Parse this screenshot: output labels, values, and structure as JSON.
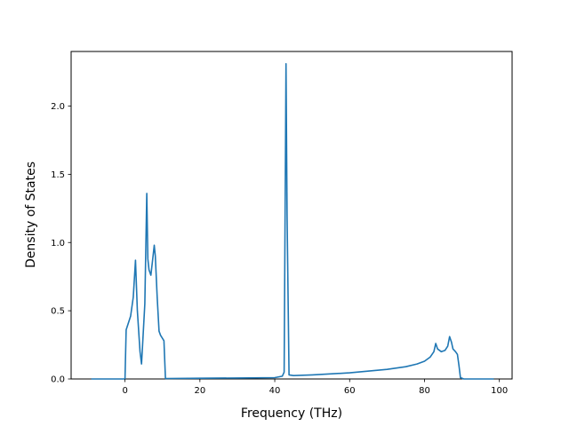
{
  "chart_data": {
    "type": "line",
    "title": "",
    "xlabel": "Frequency (THz)",
    "ylabel": "Density of States",
    "xlim": [
      -14.4,
      103.4
    ],
    "ylim": [
      0,
      2.4
    ],
    "x_ticks": [
      0,
      20,
      40,
      60,
      80,
      100
    ],
    "x_tick_labels": [
      "0",
      "20",
      "40",
      "60",
      "80",
      "100"
    ],
    "y_ticks": [
      0.0,
      0.5,
      1.0,
      1.5,
      2.0
    ],
    "y_tick_labels": [
      "0.0",
      "0.5",
      "1.0",
      "1.5",
      "2.0"
    ],
    "grid": false,
    "legend": "none",
    "series": [
      {
        "color": "#1f77b4",
        "x": [
          -9,
          -0.3,
          0,
          0.3,
          1.5,
          2.2,
          2.8,
          3.3,
          4.0,
          4.4,
          4.8,
          5.3,
          5.8,
          6.1,
          6.4,
          6.9,
          7.4,
          7.8,
          8.1,
          8.6,
          9.1,
          9.5,
          10.4,
          10.8,
          20,
          30,
          40,
          42.0,
          42.5,
          43.0,
          43.3,
          43.8,
          45,
          50,
          60,
          70,
          75,
          78,
          80,
          81.5,
          82.5,
          83.0,
          83.5,
          84.5,
          85.5,
          86.2,
          86.7,
          87.2,
          87.6,
          88.3,
          88.8,
          89.2,
          89.6,
          90.5,
          98.5
        ],
        "y": [
          0,
          0,
          0,
          0.36,
          0.46,
          0.6,
          0.87,
          0.5,
          0.2,
          0.11,
          0.3,
          0.55,
          1.36,
          0.88,
          0.8,
          0.76,
          0.88,
          0.98,
          0.9,
          0.6,
          0.35,
          0.32,
          0.28,
          0.003,
          0.005,
          0.007,
          0.01,
          0.02,
          0.05,
          2.31,
          1.2,
          0.03,
          0.025,
          0.03,
          0.045,
          0.07,
          0.09,
          0.11,
          0.13,
          0.16,
          0.2,
          0.26,
          0.22,
          0.2,
          0.21,
          0.24,
          0.31,
          0.27,
          0.22,
          0.2,
          0.18,
          0.1,
          0.01,
          0,
          0
        ]
      }
    ]
  }
}
